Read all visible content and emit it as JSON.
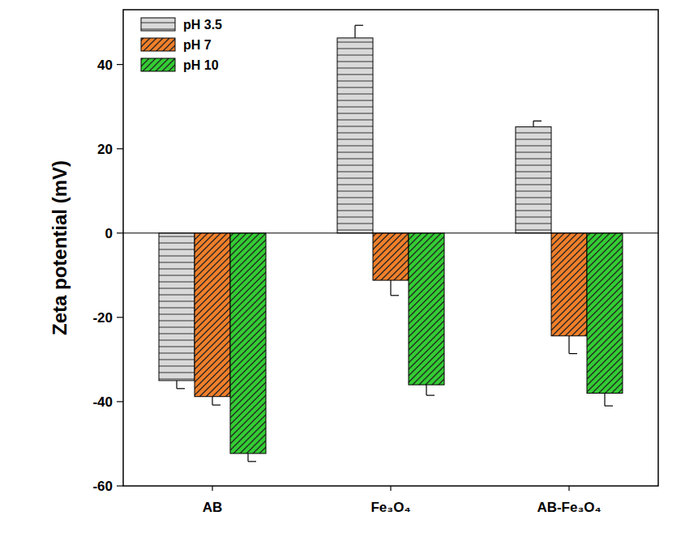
{
  "chart_data": {
    "type": "bar",
    "y_label": "Zeta potential (mV)",
    "categories": [
      "AB",
      "Fe₃O₄",
      "AB-Fe₃O₄"
    ],
    "series": [
      {
        "name": "pH 3.5",
        "color": "#d9d9d9",
        "values": [
          -35,
          46.3,
          25.2
        ],
        "errors": [
          1.9,
          3,
          1.4
        ]
      },
      {
        "name": "pH 7",
        "color": "#f07f2a",
        "values": [
          -38.8,
          -11.2,
          -24.4
        ],
        "errors": [
          2,
          3.6,
          4.2
        ]
      },
      {
        "name": "pH 10",
        "color": "#33cc33",
        "values": [
          -52.3,
          -36,
          -38
        ],
        "errors": [
          1.9,
          2.5,
          3
        ]
      }
    ],
    "ylim": [
      -60,
      53
    ],
    "yticks": [
      -60,
      -40,
      -20,
      0,
      20,
      40
    ],
    "grid": false,
    "legend": "upper left"
  }
}
